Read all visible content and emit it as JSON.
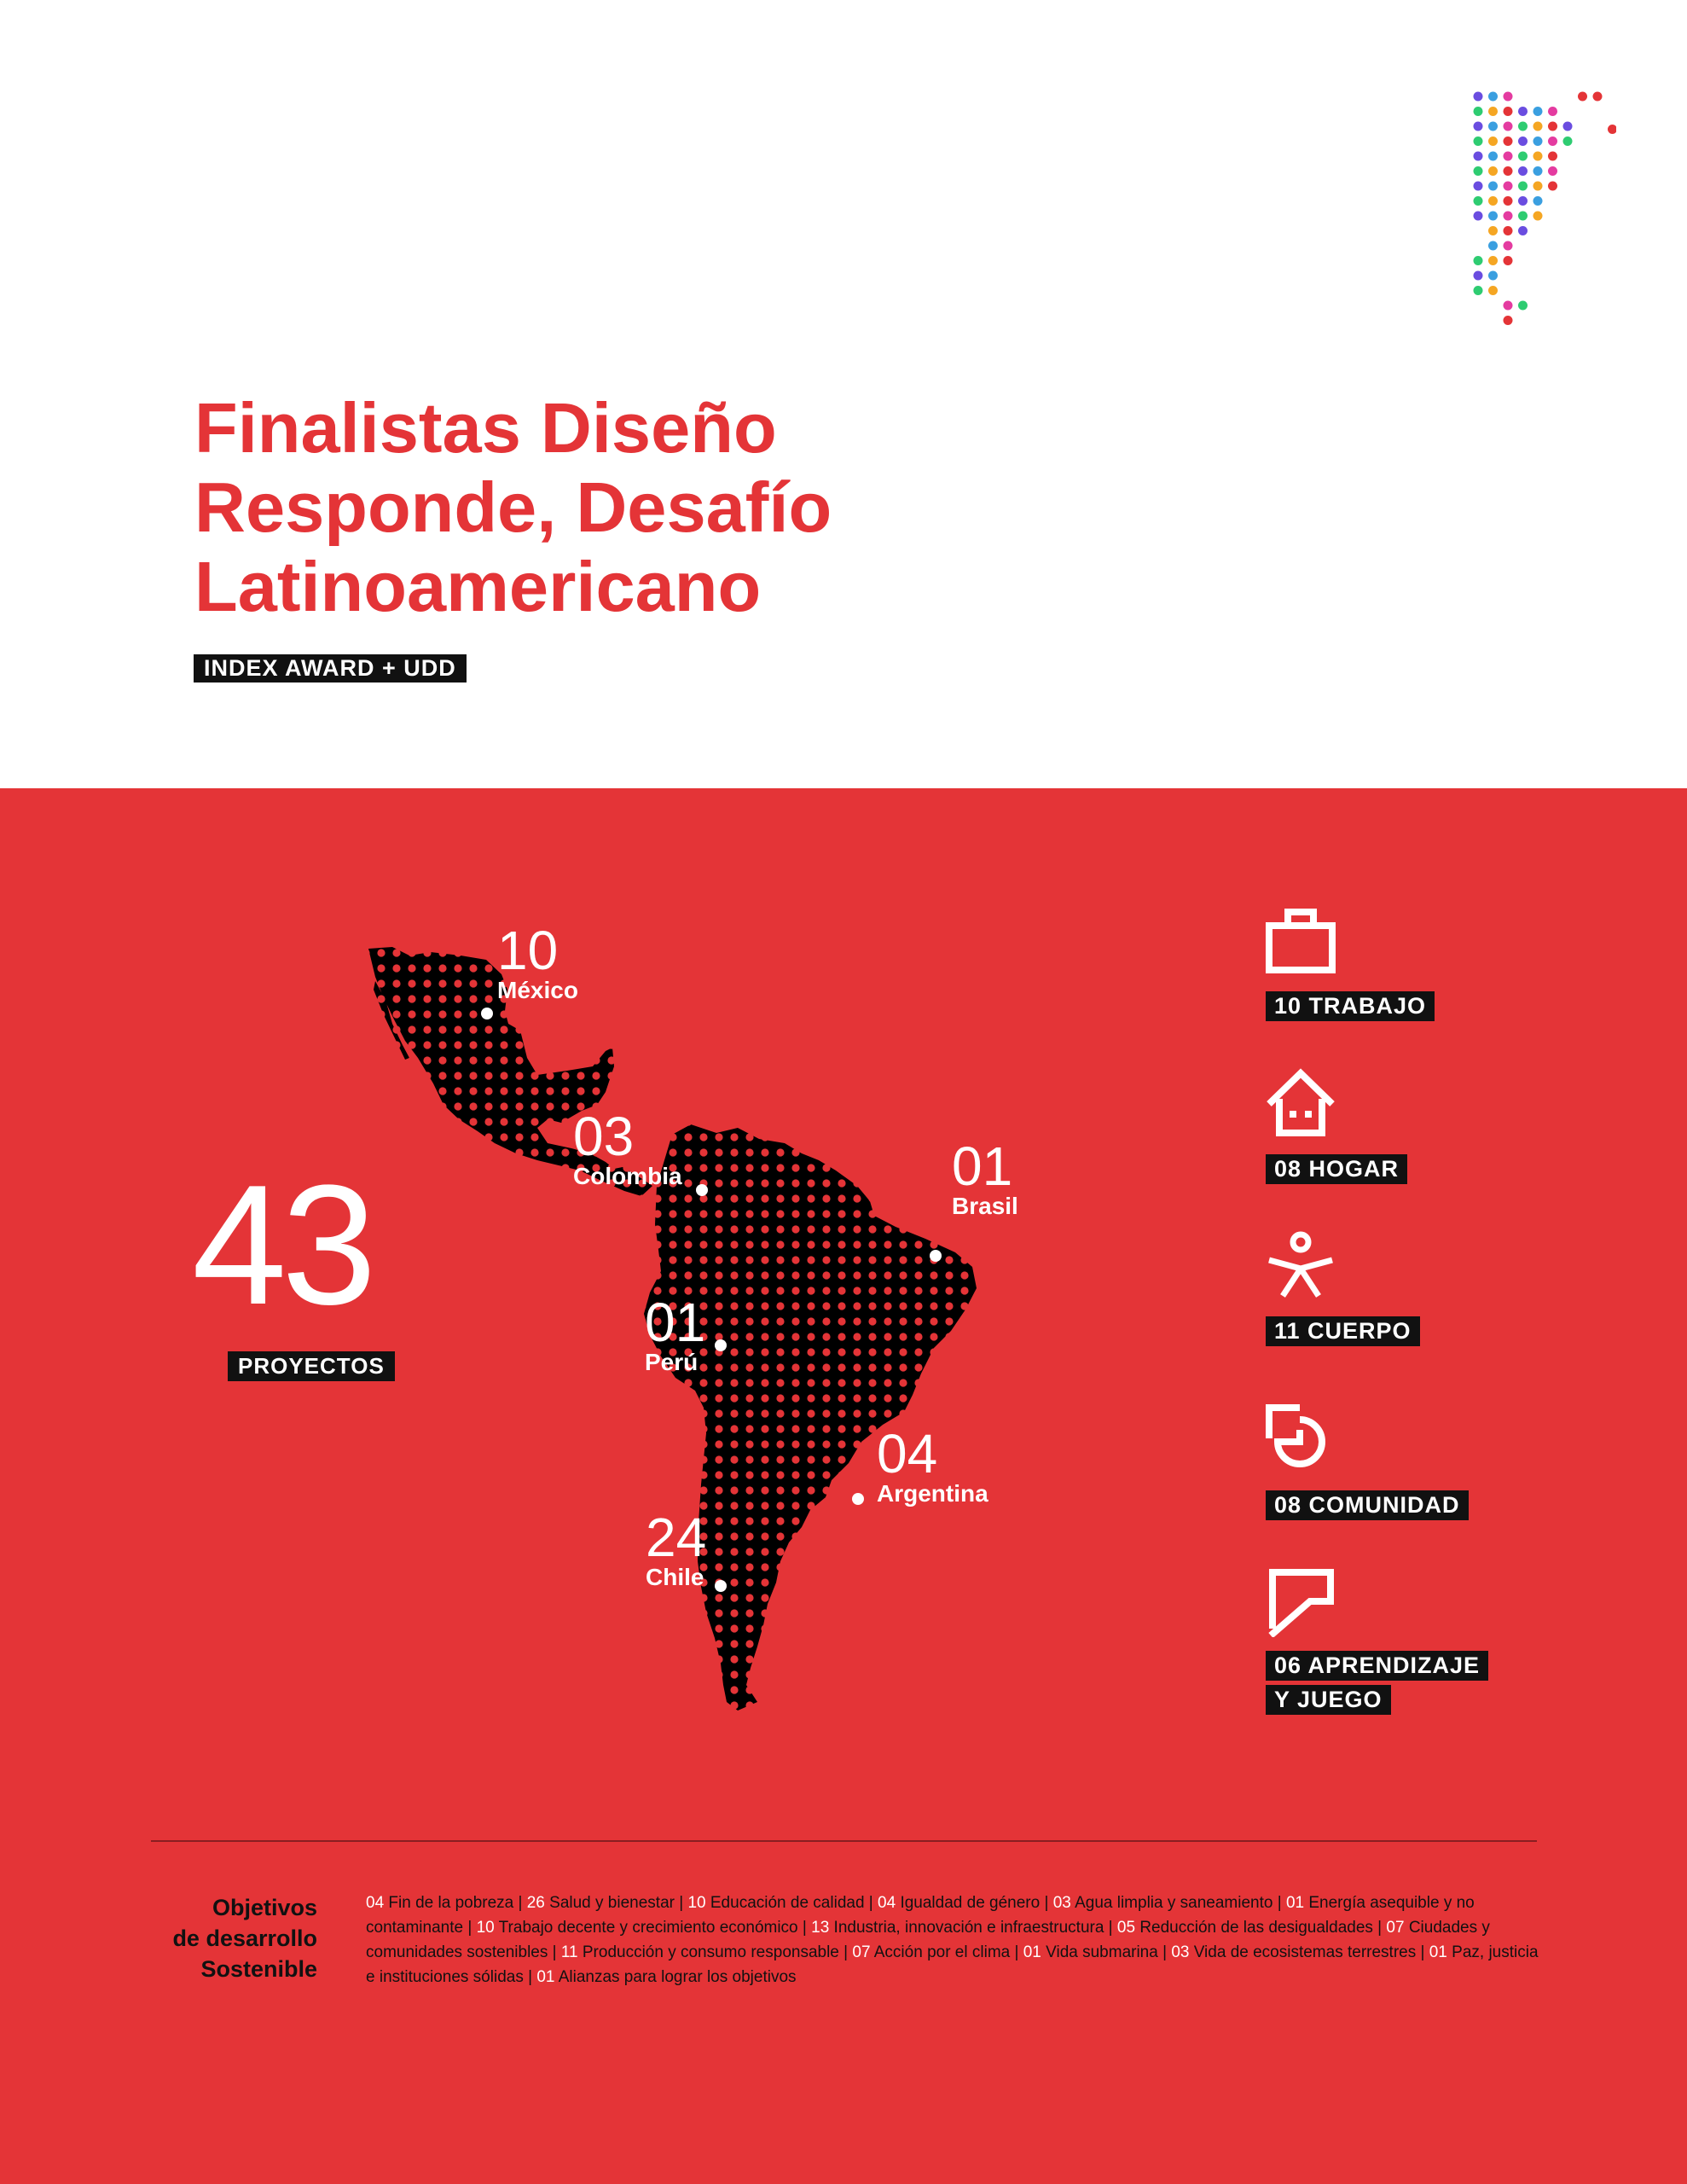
{
  "header": {
    "title_line1": "Finalistas Diseño",
    "title_line2": "Responde, Desafío",
    "title_line3": "Latinoamericano",
    "subtitle": "INDEX AWARD + UDD"
  },
  "total": {
    "number": "43",
    "label": "PROYECTOS"
  },
  "countries": [
    {
      "count": "10",
      "name": "México"
    },
    {
      "count": "03",
      "name": "Colombia"
    },
    {
      "count": "01",
      "name": "Brasil"
    },
    {
      "count": "01",
      "name": "Perú"
    },
    {
      "count": "04",
      "name": "Argentina"
    },
    {
      "count": "24",
      "name": "Chile"
    }
  ],
  "categories": [
    {
      "icon": "briefcase-icon",
      "label": "10 TRABAJO"
    },
    {
      "icon": "home-icon",
      "label": "08 HOGAR"
    },
    {
      "icon": "person-icon",
      "label": "11 CUERPO"
    },
    {
      "icon": "community-icon",
      "label": "08 COMUNIDAD"
    },
    {
      "icon": "learning-icon",
      "label_line1": "06 APRENDIZAJE",
      "label_line2": "Y JUEGO"
    }
  ],
  "sdg": {
    "title_line1": "Objetivos",
    "title_line2": "de desarrollo",
    "title_line3": "Sostenible",
    "items": [
      {
        "n": "04",
        "t": "Fin de la pobreza"
      },
      {
        "n": "26",
        "t": "Salud y bienestar"
      },
      {
        "n": "10",
        "t": "Educación de calidad"
      },
      {
        "n": "04",
        "t": "Igualdad de género"
      },
      {
        "n": "03",
        "t": "Agua limplia y saneamiento"
      },
      {
        "n": "01",
        "t": "Energía asequible y no contaminante"
      },
      {
        "n": "10",
        "t": "Trabajo decente y crecimiento económico"
      },
      {
        "n": "13",
        "t": "Industria, innovación e infraestructura"
      },
      {
        "n": "05",
        "t": "Reducción de las desigualdades"
      },
      {
        "n": "07",
        "t": "Ciudades y comunidades sostenibles"
      },
      {
        "n": "11",
        "t": "Producción y consumo responsable"
      },
      {
        "n": "07",
        "t": "Acción por el clima"
      },
      {
        "n": "01",
        "t": "Vida submarina"
      },
      {
        "n": "03",
        "t": "Vida de ecosistemas terrestres"
      },
      {
        "n": "01",
        "t": "Paz, justicia e instituciones sólidas"
      },
      {
        "n": "01",
        "t": "Alianzas para lograr los objetivos"
      }
    ]
  },
  "colors": {
    "red": "#e43437",
    "black": "#111111",
    "white": "#ffffff"
  }
}
